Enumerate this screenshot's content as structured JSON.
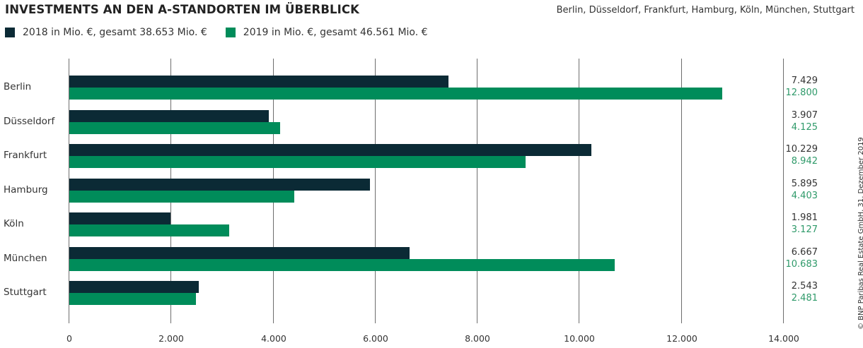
{
  "header": {
    "title": "INVESTMENTS AN DEN A-STANDORTEN IM ÜBERBLICK",
    "subtitle": "Berlin, Düsseldorf, Frankfurt, Hamburg, Köln, München, Stuttgart"
  },
  "legend": [
    {
      "label": "2018 in Mio. €, gesamt 38.653 Mio. €",
      "color": "#0b2a35"
    },
    {
      "label": "2019 in Mio. €, gesamt 46.561 Mio. €",
      "color": "#008c5a"
    }
  ],
  "credit": "© BNP Paribas Real Estate GmbH, 31. Dezember 2019",
  "axis": {
    "ticks": [
      "0",
      "2.000",
      "4.000",
      "6.000",
      "8.000",
      "10.000",
      "12.000",
      "14.000"
    ]
  },
  "rows": [
    {
      "city": "Berlin",
      "v2018": "7.429",
      "v2019": "12.800"
    },
    {
      "city": "Düsseldorf",
      "v2018": "3.907",
      "v2019": "4.125"
    },
    {
      "city": "Frankfurt",
      "v2018": "10.229",
      "v2019": "8.942"
    },
    {
      "city": "Hamburg",
      "v2018": "5.895",
      "v2019": "4.403"
    },
    {
      "city": "Köln",
      "v2018": "1.981",
      "v2019": "3.127"
    },
    {
      "city": "München",
      "v2018": "6.667",
      "v2019": "10.683"
    },
    {
      "city": "Stuttgart",
      "v2018": "2.543",
      "v2019": "2.481"
    }
  ],
  "chart_data": {
    "type": "bar",
    "orientation": "horizontal",
    "title": "INVESTMENTS AN DEN A-STANDORTEN IM ÜBERBLICK",
    "subtitle": "Berlin, Düsseldorf, Frankfurt, Hamburg, Köln, München, Stuttgart",
    "categories": [
      "Berlin",
      "Düsseldorf",
      "Frankfurt",
      "Hamburg",
      "Köln",
      "München",
      "Stuttgart"
    ],
    "series": [
      {
        "name": "2018 in Mio. €, gesamt 38.653 Mio. €",
        "color": "#0b2a35",
        "values": [
          7429,
          3907,
          10229,
          5895,
          1981,
          6667,
          2543
        ]
      },
      {
        "name": "2019 in Mio. €, gesamt 46.561 Mio. €",
        "color": "#008c5a",
        "values": [
          12800,
          4125,
          8942,
          4403,
          3127,
          10683,
          2481
        ]
      }
    ],
    "xlabel": "",
    "ylabel": "",
    "xlim": [
      0,
      14000
    ],
    "xticks": [
      0,
      2000,
      4000,
      6000,
      8000,
      10000,
      12000,
      14000
    ],
    "grid": "vertical",
    "legend_position": "top-left",
    "annotations": [
      "© BNP Paribas Real Estate GmbH, 31. Dezember 2019"
    ]
  }
}
